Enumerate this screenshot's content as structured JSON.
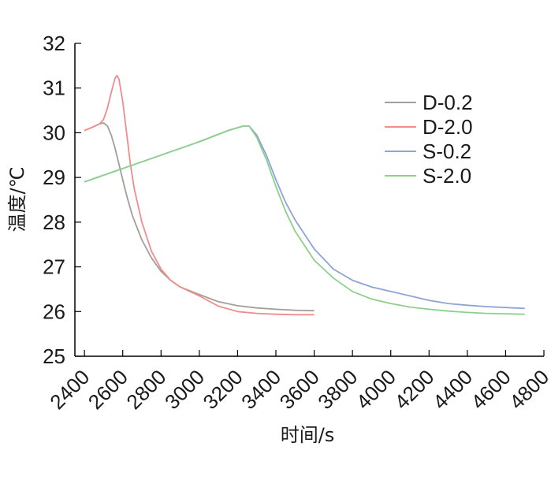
{
  "chart_data": {
    "type": "line",
    "xlabel": "时间/s",
    "ylabel": "温度/℃",
    "xlim": [
      2350,
      4800
    ],
    "ylim": [
      25,
      32
    ],
    "xticks": [
      2400,
      2600,
      2800,
      3000,
      3200,
      3400,
      3600,
      3800,
      4000,
      4200,
      4400,
      4600,
      4800
    ],
    "yticks": [
      25,
      26,
      27,
      28,
      29,
      30,
      31,
      32
    ],
    "grid": false,
    "legend_position": "right",
    "series": [
      {
        "name": "D-0.2",
        "color": "#a39e99",
        "points": [
          [
            2400,
            30.05
          ],
          [
            2440,
            30.12
          ],
          [
            2480,
            30.2
          ],
          [
            2500,
            30.22
          ],
          [
            2520,
            30.15
          ],
          [
            2540,
            29.95
          ],
          [
            2560,
            29.65
          ],
          [
            2580,
            29.3
          ],
          [
            2600,
            28.95
          ],
          [
            2620,
            28.6
          ],
          [
            2650,
            28.15
          ],
          [
            2700,
            27.6
          ],
          [
            2750,
            27.2
          ],
          [
            2800,
            26.9
          ],
          [
            2850,
            26.7
          ],
          [
            2900,
            26.55
          ],
          [
            3000,
            26.38
          ],
          [
            3100,
            26.22
          ],
          [
            3200,
            26.13
          ],
          [
            3300,
            26.08
          ],
          [
            3400,
            26.05
          ],
          [
            3500,
            26.03
          ],
          [
            3600,
            26.02
          ]
        ]
      },
      {
        "name": "D-2.0",
        "color": "#f08c8c",
        "points": [
          [
            2400,
            30.05
          ],
          [
            2440,
            30.12
          ],
          [
            2480,
            30.2
          ],
          [
            2500,
            30.3
          ],
          [
            2520,
            30.55
          ],
          [
            2540,
            30.9
          ],
          [
            2560,
            31.22
          ],
          [
            2570,
            31.28
          ],
          [
            2580,
            31.2
          ],
          [
            2600,
            30.7
          ],
          [
            2620,
            30.0
          ],
          [
            2640,
            29.3
          ],
          [
            2660,
            28.75
          ],
          [
            2700,
            28.0
          ],
          [
            2750,
            27.35
          ],
          [
            2800,
            26.95
          ],
          [
            2850,
            26.7
          ],
          [
            2900,
            26.55
          ],
          [
            3000,
            26.35
          ],
          [
            3100,
            26.12
          ],
          [
            3200,
            26.0
          ],
          [
            3300,
            25.96
          ],
          [
            3400,
            25.94
          ],
          [
            3500,
            25.93
          ],
          [
            3600,
            25.93
          ]
        ]
      },
      {
        "name": "S-0.2",
        "color": "#8fa3d6",
        "points": [
          [
            2400,
            28.9
          ],
          [
            2600,
            29.2
          ],
          [
            2800,
            29.5
          ],
          [
            3000,
            29.8
          ],
          [
            3150,
            30.05
          ],
          [
            3230,
            30.15
          ],
          [
            3260,
            30.15
          ],
          [
            3300,
            29.95
          ],
          [
            3350,
            29.5
          ],
          [
            3400,
            28.95
          ],
          [
            3450,
            28.45
          ],
          [
            3500,
            28.05
          ],
          [
            3600,
            27.4
          ],
          [
            3700,
            26.95
          ],
          [
            3800,
            26.7
          ],
          [
            3900,
            26.55
          ],
          [
            4000,
            26.45
          ],
          [
            4100,
            26.35
          ],
          [
            4200,
            26.25
          ],
          [
            4300,
            26.18
          ],
          [
            4400,
            26.14
          ],
          [
            4500,
            26.11
          ],
          [
            4600,
            26.09
          ],
          [
            4700,
            26.07
          ]
        ]
      },
      {
        "name": "S-2.0",
        "color": "#8cd08c",
        "points": [
          [
            2400,
            28.9
          ],
          [
            2600,
            29.2
          ],
          [
            2800,
            29.5
          ],
          [
            3000,
            29.8
          ],
          [
            3150,
            30.05
          ],
          [
            3230,
            30.15
          ],
          [
            3260,
            30.15
          ],
          [
            3300,
            29.9
          ],
          [
            3350,
            29.4
          ],
          [
            3400,
            28.8
          ],
          [
            3450,
            28.25
          ],
          [
            3500,
            27.8
          ],
          [
            3600,
            27.15
          ],
          [
            3700,
            26.75
          ],
          [
            3800,
            26.45
          ],
          [
            3900,
            26.28
          ],
          [
            4000,
            26.18
          ],
          [
            4100,
            26.1
          ],
          [
            4200,
            26.05
          ],
          [
            4300,
            26.01
          ],
          [
            4400,
            25.98
          ],
          [
            4500,
            25.96
          ],
          [
            4600,
            25.95
          ],
          [
            4700,
            25.94
          ]
        ]
      }
    ]
  }
}
